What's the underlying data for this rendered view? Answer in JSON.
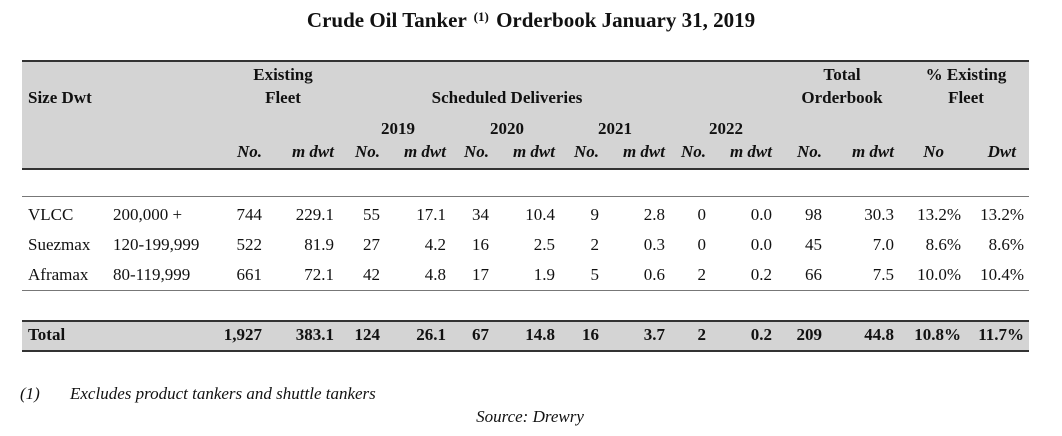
{
  "title": {
    "prefix": "Crude Oil Tanker",
    "note_marker": "(1)",
    "suffix": "Orderbook January 31, 2019"
  },
  "header": {
    "size_label": "Size Dwt",
    "existing_fleet": [
      "Existing",
      "Fleet"
    ],
    "scheduled_deliveries": "Scheduled  Deliveries",
    "years": [
      "2019",
      "2020",
      "2021",
      "2022"
    ],
    "total_orderbook": [
      "Total",
      "Orderbook"
    ],
    "pct_existing": [
      "% Existing",
      "Fleet"
    ],
    "subheaders": [
      "No.",
      "m dwt",
      "No.",
      "m dwt",
      "No.",
      "m dwt",
      "No.",
      "m dwt",
      "No.",
      "m dwt",
      "No.",
      "m dwt",
      "No",
      "Dwt"
    ]
  },
  "rows": [
    {
      "name": "VLCC",
      "size": "200,000 +",
      "values": [
        "744",
        "229.1",
        "55",
        "17.1",
        "34",
        "10.4",
        "9",
        "2.8",
        "0",
        "0.0",
        "98",
        "30.3",
        "13.2%",
        "13.2%"
      ]
    },
    {
      "name": "Suezmax",
      "size": "120-199,999",
      "values": [
        "522",
        "81.9",
        "27",
        "4.2",
        "16",
        "2.5",
        "2",
        "0.3",
        "0",
        "0.0",
        "45",
        "7.0",
        "8.6%",
        "8.6%"
      ]
    },
    {
      "name": "Aframax",
      "size": "80-119,999",
      "values": [
        "661",
        "72.1",
        "42",
        "4.8",
        "17",
        "1.9",
        "5",
        "0.6",
        "2",
        "0.2",
        "66",
        "7.5",
        "10.0%",
        "10.4%"
      ]
    }
  ],
  "total": {
    "label": "Total",
    "values": [
      "1,927",
      "383.1",
      "124",
      "26.1",
      "67",
      "14.8",
      "16",
      "3.7",
      "2",
      "0.2",
      "209",
      "44.8",
      "10.8%",
      "11.7%"
    ]
  },
  "footnote": {
    "marker": "(1)",
    "text": "Excludes product tankers and shuttle tankers"
  },
  "source": "Source: Drewry"
}
